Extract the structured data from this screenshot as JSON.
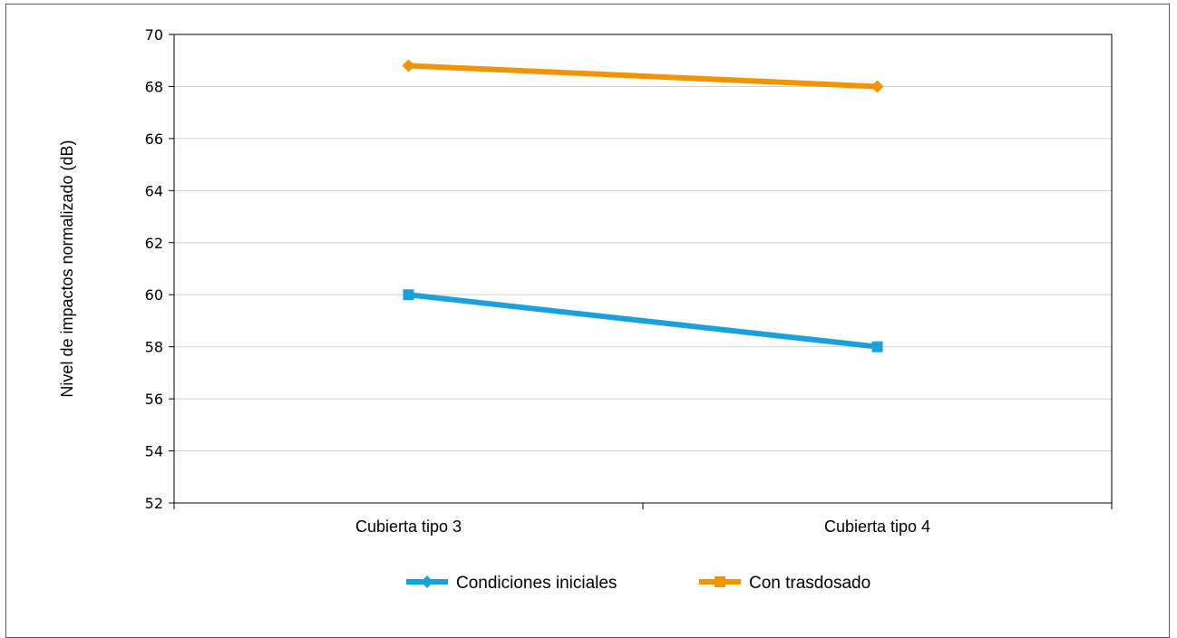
{
  "chart_data": {
    "type": "line",
    "title": "",
    "xlabel": "",
    "ylabel": "Nivel de impactos normalizado (dB)",
    "categories": [
      "Cubierta tipo 3",
      "Cubierta tipo 4"
    ],
    "ylim": [
      52,
      70
    ],
    "yticks": [
      52,
      54,
      56,
      58,
      60,
      62,
      64,
      66,
      68,
      70
    ],
    "grid": true,
    "legend_position": "bottom",
    "series": [
      {
        "name": "Condiciones iniciales",
        "values": [
          60.0,
          58.0
        ],
        "color": "#1aa1dc",
        "marker": "square"
      },
      {
        "name": "Con trasdosado",
        "values": [
          68.8,
          68.0
        ],
        "color": "#f29400",
        "marker": "diamond"
      }
    ]
  }
}
